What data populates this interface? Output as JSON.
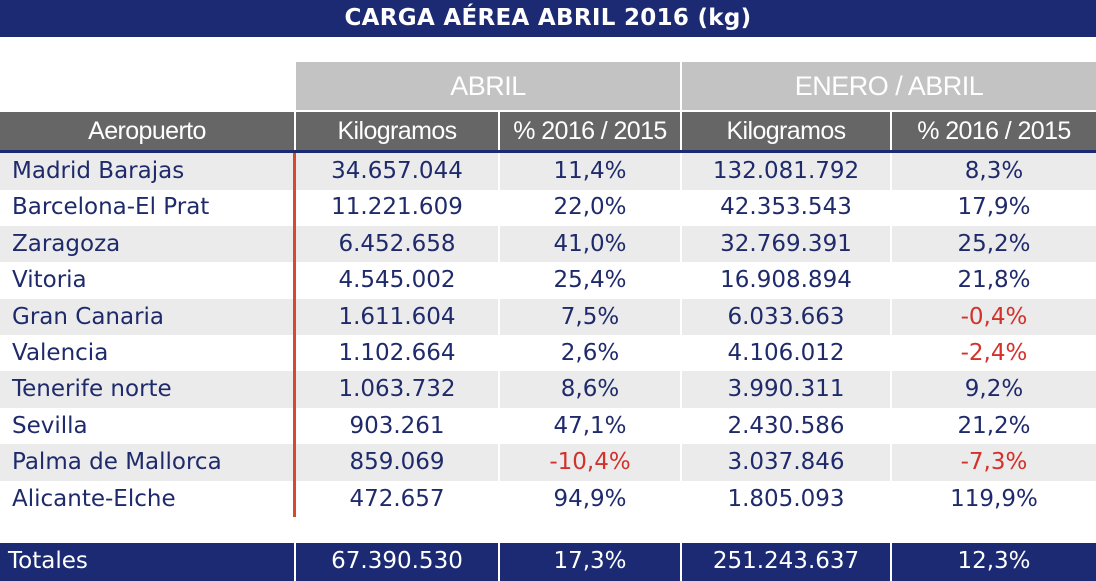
{
  "title": "CARGA AÉREA ABRIL 2016 (kg)",
  "groups": [
    "ABRIL",
    "ENERO / ABRIL"
  ],
  "headers": [
    "Aeropuerto",
    "Kilogramos",
    "% 2016 / 2015",
    "Kilogramos",
    "% 2016 / 2015"
  ],
  "rows": [
    [
      "Madrid Barajas",
      "34.657.044",
      "11,4%",
      "132.081.792",
      "8,3%"
    ],
    [
      "Barcelona-El Prat",
      "11.221.609",
      "22,0%",
      "42.353.543",
      "17,9%"
    ],
    [
      "Zaragoza",
      "6.452.658",
      "41,0%",
      "32.769.391",
      "25,2%"
    ],
    [
      "Vitoria",
      "4.545.002",
      "25,4%",
      "16.908.894",
      "21,8%"
    ],
    [
      "Gran Canaria",
      "1.611.604",
      "7,5%",
      "6.033.663",
      "-0,4%"
    ],
    [
      "Valencia",
      "1.102.664",
      "2,6%",
      "4.106.012",
      "-2,4%"
    ],
    [
      "Tenerife norte",
      "1.063.732",
      "8,6%",
      "3.990.311",
      "9,2%"
    ],
    [
      "Sevilla",
      "903.261",
      "47,1%",
      "2.430.586",
      "21,2%"
    ],
    [
      "Palma de Mallorca",
      "859.069",
      "-10,4%",
      "3.037.846",
      "-7,3%"
    ],
    [
      "Alicante-Elche",
      "472.657",
      "94,9%",
      "1.805.093",
      "119,9%"
    ]
  ],
  "totals": [
    "Totales",
    "67.390.530",
    "17,3%",
    "251.243.637",
    "12,3%"
  ],
  "colors": {
    "navy": "#1b2a73",
    "text": "#1f2a6b",
    "negative": "#d3312b",
    "header": "#666666",
    "group": "#c3c3c3"
  }
}
